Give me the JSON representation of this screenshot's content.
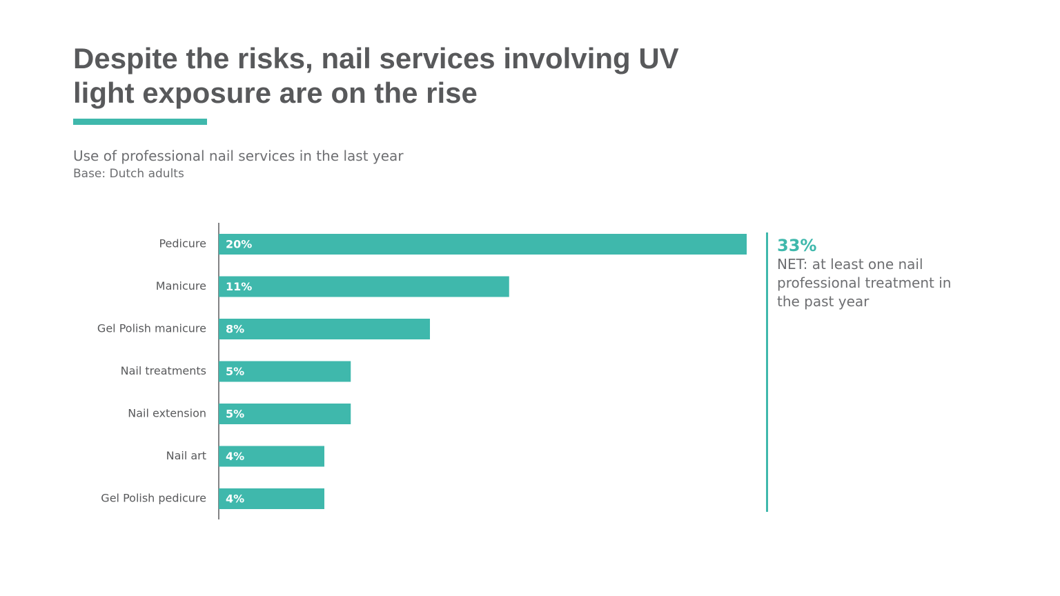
{
  "chart_data": {
    "type": "bar",
    "orientation": "horizontal",
    "title": "Despite the risks, nail services involving UV light exposure are on the rise",
    "subtitle": "Use of professional nail services in the last year",
    "note": "Base: Dutch adults",
    "categories": [
      "Pedicure",
      "Manicure",
      "Gel Polish manicure",
      "Nail treatments",
      "Nail extension",
      "Nail art",
      "Gel Polish pedicure"
    ],
    "values": [
      20,
      11,
      8,
      5,
      5,
      4,
      4
    ],
    "value_labels": [
      "20%",
      "11%",
      "8%",
      "5%",
      "5%",
      "4%",
      "4%"
    ],
    "color": "#3fb8ac",
    "annotation": {
      "value": 33,
      "value_label": "33%",
      "text": "NET: at least one nail professional treatment in the past year"
    }
  }
}
